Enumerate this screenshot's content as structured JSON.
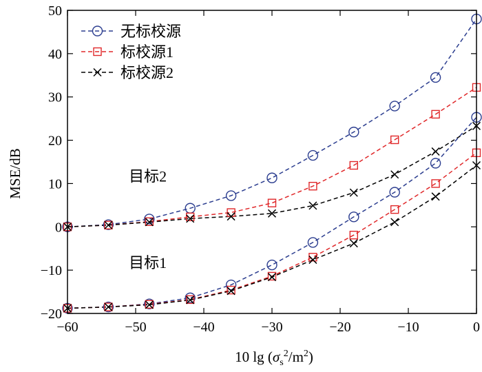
{
  "chart_data": {
    "type": "line",
    "xlabel": "10 lg (σs²/m²)",
    "xlabel_parts": {
      "prefix": "10 lg (",
      "sigma": "σ",
      "sub": "s",
      "sup": "2",
      "unit": "/m",
      "unit_sup": "2",
      "suffix": ")"
    },
    "ylabel": "MSE/dB",
    "xlim": [
      -60,
      0
    ],
    "ylim": [
      -20,
      50
    ],
    "xticks": [
      -60,
      -50,
      -40,
      -30,
      -20,
      -10,
      0
    ],
    "xtick_labels": [
      "−60",
      "−50",
      "−40",
      "−30",
      "−20",
      "−10",
      "0"
    ],
    "yticks": [
      -20,
      -10,
      0,
      10,
      20,
      30,
      40,
      50
    ],
    "ytick_labels": [
      "−20",
      "−10",
      "0",
      "10",
      "20",
      "30",
      "40",
      "50"
    ],
    "x": [
      -60,
      -54,
      -48,
      -42,
      -36,
      -30,
      -24,
      -18,
      -12,
      -6,
      0
    ],
    "legend_position": "top-left",
    "series": [
      {
        "name": "无标校源",
        "group": "目标2",
        "color": "#2b3d8f",
        "marker": "circle",
        "values": [
          0,
          0.5,
          1.8,
          4.3,
          7.2,
          11.3,
          16.5,
          21.9,
          27.9,
          34.5,
          48
        ]
      },
      {
        "name": "标校源1",
        "group": "目标2",
        "color": "#e0282a",
        "marker": "square",
        "values": [
          0,
          0.4,
          1.2,
          2.3,
          3.3,
          5.5,
          9.4,
          14.2,
          20.1,
          26,
          32.2
        ]
      },
      {
        "name": "标校源2",
        "group": "目标2",
        "color": "#000000",
        "marker": "x",
        "values": [
          0,
          0.4,
          1.1,
          1.9,
          2.4,
          3.1,
          4.9,
          7.9,
          12.1,
          17.4,
          23.3
        ]
      },
      {
        "name": "无标校源",
        "group": "目标1",
        "color": "#2b3d8f",
        "marker": "circle",
        "values": [
          -18.8,
          -18.5,
          -17.8,
          -16.4,
          -13.4,
          -8.8,
          -3.6,
          2.3,
          8.0,
          14.7,
          25.3
        ]
      },
      {
        "name": "标校源1",
        "group": "目标1",
        "color": "#e0282a",
        "marker": "square",
        "values": [
          -18.8,
          -18.5,
          -17.9,
          -16.8,
          -14.6,
          -11.4,
          -7.0,
          -1.9,
          4.0,
          10.0,
          17.1
        ]
      },
      {
        "name": "标校源2",
        "group": "目标1",
        "color": "#000000",
        "marker": "x",
        "values": [
          -18.8,
          -18.5,
          -18.0,
          -16.9,
          -14.8,
          -11.6,
          -7.6,
          -3.8,
          1.1,
          7.0,
          14.2
        ]
      }
    ],
    "legend": [
      {
        "label": "无标校源",
        "color": "#2b3d8f",
        "marker": "circle"
      },
      {
        "label": "标校源1",
        "color": "#e0282a",
        "marker": "square"
      },
      {
        "label": "标校源2",
        "color": "#000000",
        "marker": "x"
      }
    ],
    "annotations": [
      {
        "text": "目标2",
        "x": -51,
        "y": 10.5
      },
      {
        "text": "目标1",
        "x": -51,
        "y": -9.5
      }
    ]
  }
}
